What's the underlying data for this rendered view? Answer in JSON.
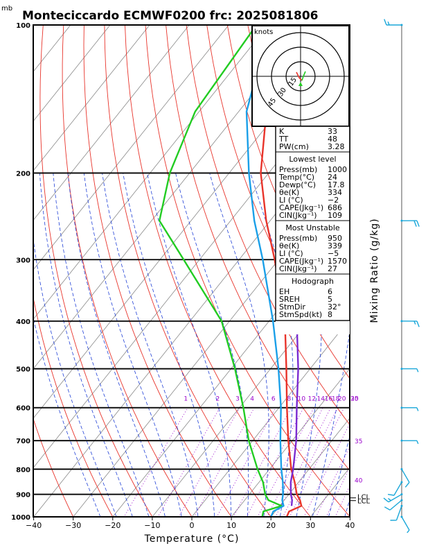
{
  "header": {
    "unit_label": "mb",
    "title": "Monteciccardo ECMWF0200  frc: 2025081806"
  },
  "axes": {
    "xlabel": "Temperature (°C)",
    "right_label": "Mixing Ratio (g/kg)",
    "lcl_label": "LCL"
  },
  "mixing_ratio_labels": {
    "low": [
      "1",
      "2",
      "3",
      "4",
      "6",
      "8",
      "10",
      "12",
      "14",
      "16",
      "18",
      "20",
      "25",
      "30"
    ],
    "right": [
      {
        "label": "35",
        "p": 700
      },
      {
        "label": "40",
        "p": 840
      }
    ]
  },
  "hodograph": {
    "unit": "knots",
    "rings": [
      15,
      30,
      45
    ],
    "stamp_direction_deg": 32,
    "stamp_speed_kt": 8
  },
  "indices_table": {
    "top": [
      {
        "k": "K",
        "v": "33"
      },
      {
        "k": "TT",
        "v": "48"
      },
      {
        "k": "PW(cm)",
        "v": "3.28"
      }
    ],
    "lowest_level": {
      "heading": "Lowest level",
      "rows": [
        {
          "k": "Press(mb)",
          "v": "1000"
        },
        {
          "k": "Temp(°C)",
          "v": "24"
        },
        {
          "k": "Dewp(°C)",
          "v": "17.8"
        },
        {
          "k": "θe(K)",
          "v": "334"
        },
        {
          "k": "LI (°C)",
          "v": "−2"
        },
        {
          "k": "CAPE(Jkg⁻¹)",
          "v": "686"
        },
        {
          "k": "CIN(Jkg⁻¹)",
          "v": "109"
        }
      ]
    },
    "most_unstable": {
      "heading": "Most Unstable",
      "rows": [
        {
          "k": "Press(mb)",
          "v": "950"
        },
        {
          "k": "θe(K)",
          "v": "339"
        },
        {
          "k": "LI (°C)",
          "v": "−5"
        },
        {
          "k": "CAPE(Jkg⁻¹)",
          "v": "1570"
        },
        {
          "k": "CIN(Jkg⁻¹)",
          "v": "27"
        }
      ]
    },
    "hodograph_block": {
      "heading": "Hodograph",
      "rows": [
        {
          "k": "EH",
          "v": "6"
        },
        {
          "k": "SREH",
          "v": "5"
        },
        {
          "k": "StmDir",
          "v": "32°"
        },
        {
          "k": "StmSpd(kt)",
          "v": "8"
        }
      ]
    }
  },
  "colors": {
    "temperature": "#e8332a",
    "dewpoint": "#22cc22",
    "parcel": "#7b2bd1",
    "wetbulb": "#1a9fe8",
    "isotherms": "#888888",
    "dry_adiabats": "#e8332a",
    "moist_adiabats": "#1f3fd6",
    "mixing_ratio": "#9900cc",
    "wind": "#1aa7d9"
  },
  "chart_data": {
    "type": "line",
    "subtype": "skew-t log-p",
    "xlim": [
      -40,
      40
    ],
    "x_ticks": [
      -40,
      -30,
      -20,
      -10,
      0,
      10,
      20,
      30,
      40
    ],
    "p_ticks": [
      100,
      200,
      300,
      400,
      500,
      600,
      700,
      800,
      900,
      1000
    ],
    "pressure_range": [
      100,
      1000
    ],
    "series": [
      {
        "name": "Temperature",
        "points": [
          [
            1000,
            24
          ],
          [
            975,
            23.5
          ],
          [
            950,
            25.5
          ],
          [
            925,
            24
          ],
          [
            900,
            22
          ],
          [
            850,
            19
          ],
          [
            800,
            15.5
          ],
          [
            700,
            9
          ],
          [
            600,
            2
          ],
          [
            500,
            -6
          ],
          [
            400,
            -16
          ],
          [
            300,
            -31
          ],
          [
            250,
            -41
          ],
          [
            200,
            -52
          ],
          [
            150,
            -63
          ],
          [
            100,
            -69
          ]
        ]
      },
      {
        "name": "Dewpoint",
        "points": [
          [
            1000,
            17.8
          ],
          [
            975,
            17
          ],
          [
            950,
            20.5
          ],
          [
            925,
            16
          ],
          [
            900,
            14
          ],
          [
            850,
            11
          ],
          [
            800,
            7
          ],
          [
            700,
            -1
          ],
          [
            600,
            -9
          ],
          [
            500,
            -19
          ],
          [
            400,
            -32
          ],
          [
            300,
            -54
          ],
          [
            250,
            -68
          ],
          [
            200,
            -75
          ],
          [
            150,
            -81
          ],
          [
            100,
            -83
          ]
        ]
      },
      {
        "name": "Parcel",
        "points": [
          [
            950,
            23
          ],
          [
            925,
            22
          ],
          [
            900,
            20.5
          ],
          [
            850,
            18
          ],
          [
            800,
            16
          ],
          [
            700,
            11
          ],
          [
            600,
            4.5
          ],
          [
            500,
            -3
          ],
          [
            400,
            -13
          ],
          [
            300,
            -26
          ],
          [
            250,
            -35
          ],
          [
            200,
            -46
          ],
          [
            150,
            -60
          ],
          [
            125,
            -68
          ]
        ]
      },
      {
        "name": "Wet-bulb",
        "points": [
          [
            1000,
            20
          ],
          [
            975,
            19.5
          ],
          [
            950,
            21
          ],
          [
            925,
            19.5
          ],
          [
            900,
            18.5
          ],
          [
            850,
            16
          ],
          [
            800,
            13
          ],
          [
            700,
            7
          ],
          [
            600,
            0.5
          ],
          [
            500,
            -8
          ],
          [
            400,
            -19
          ],
          [
            300,
            -34
          ],
          [
            250,
            -44
          ],
          [
            200,
            -55
          ],
          [
            150,
            -68
          ],
          [
            110,
            -77
          ]
        ]
      }
    ],
    "winds": [
      {
        "p": 1000,
        "dir": 150,
        "spd": 5
      },
      {
        "p": 950,
        "dir": 200,
        "spd": 10
      },
      {
        "p": 925,
        "dir": 230,
        "spd": 10
      },
      {
        "p": 900,
        "dir": 240,
        "spd": 15
      },
      {
        "p": 850,
        "dir": 210,
        "spd": 10
      },
      {
        "p": 800,
        "dir": 150,
        "spd": 10
      },
      {
        "p": 700,
        "dir": 90,
        "spd": 5
      },
      {
        "p": 600,
        "dir": 90,
        "spd": 5
      },
      {
        "p": 500,
        "dir": 90,
        "spd": 5
      },
      {
        "p": 400,
        "dir": 90,
        "spd": 15
      },
      {
        "p": 250,
        "dir": 90,
        "spd": 20
      },
      {
        "p": 100,
        "dir": 270,
        "spd": 15
      }
    ],
    "lcl_pressure": 915
  }
}
